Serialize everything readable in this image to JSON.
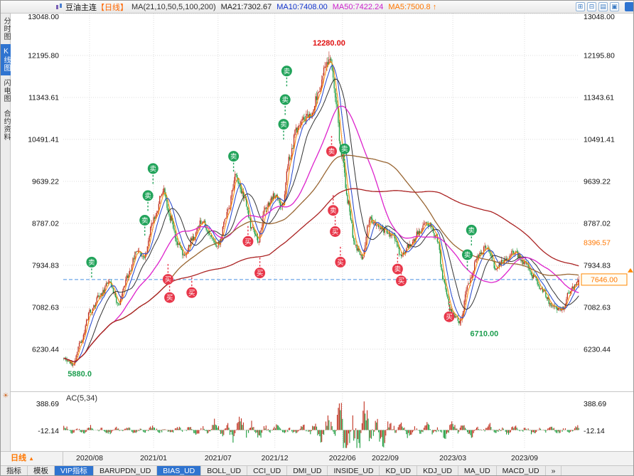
{
  "header": {
    "symbol": "豆油主连",
    "period_tag": "【日线】",
    "ma_settings": "MA(21,10,50,5,100,200)",
    "ma_values": [
      {
        "label": "MA21:7302.67",
        "color": "#222222"
      },
      {
        "label": "MA10:7408.00",
        "color": "#1133cc"
      },
      {
        "label": "MA50:7422.24",
        "color": "#cc22cc"
      },
      {
        "label": "MA5:7500.8 ↑",
        "color": "#ff7700"
      }
    ],
    "window_icons": [
      {
        "name": "tile-windows-icon",
        "glyph": "⊞"
      },
      {
        "name": "split-horizontal-icon",
        "glyph": "⊟"
      },
      {
        "name": "list-view-icon",
        "glyph": "▤"
      },
      {
        "name": "maximize-window-icon",
        "glyph": "▣"
      }
    ]
  },
  "sidebar": {
    "tabs": [
      {
        "label": "分时图",
        "active": false
      },
      {
        "label": "K线图",
        "active": true
      },
      {
        "label": "闪电图",
        "active": false
      },
      {
        "label": "合约资料",
        "active": false
      }
    ],
    "bottom_icon": "☀"
  },
  "footer": {
    "period": "日线",
    "period_arrow": "▲",
    "tabs": [
      {
        "label": "指标",
        "active": false
      },
      {
        "label": "模板",
        "active": false
      },
      {
        "label": "VIP指标",
        "active": true
      },
      {
        "label": "BARUPDN_UD",
        "active": false
      },
      {
        "label": "BIAS_UD",
        "active": true
      },
      {
        "label": "BOLL_UD",
        "active": false
      },
      {
        "label": "CCI_UD",
        "active": false
      },
      {
        "label": "DMI_UD",
        "active": false
      },
      {
        "label": "INSIDE_UD",
        "active": false
      },
      {
        "label": "KD_UD",
        "active": false
      },
      {
        "label": "KDJ_UD",
        "active": false
      },
      {
        "label": "MA_UD",
        "active": false
      },
      {
        "label": "MACD_UD",
        "active": false
      },
      {
        "label": "»",
        "active": false
      }
    ]
  },
  "chart_data": {
    "type": "candlestick",
    "title": "豆油主连 日线",
    "y_ticks": [
      13048.0,
      12195.8,
      11343.61,
      10491.41,
      9639.22,
      8787.02,
      7934.83,
      7082.63,
      6230.44
    ],
    "y_range": [
      5390,
      13048
    ],
    "x_ticks": [
      {
        "label": "2020/08",
        "t": 0.051
      },
      {
        "label": "2021/01",
        "t": 0.175
      },
      {
        "label": "2021/07",
        "t": 0.3
      },
      {
        "label": "2021/12",
        "t": 0.41
      },
      {
        "label": "2022/06",
        "t": 0.541
      },
      {
        "label": "2022/09",
        "t": 0.624
      },
      {
        "label": "2023/03",
        "t": 0.755
      },
      {
        "label": "2023/09",
        "t": 0.894
      }
    ],
    "candle_count": 500,
    "price_path": [
      [
        0.0,
        6050
      ],
      [
        0.017,
        5940
      ],
      [
        0.033,
        6350
      ],
      [
        0.051,
        7000
      ],
      [
        0.072,
        7350
      ],
      [
        0.088,
        7600
      ],
      [
        0.106,
        7150
      ],
      [
        0.124,
        7700
      ],
      [
        0.141,
        8200
      ],
      [
        0.155,
        8100
      ],
      [
        0.175,
        8900
      ],
      [
        0.193,
        9450
      ],
      [
        0.207,
        8900
      ],
      [
        0.221,
        8350
      ],
      [
        0.235,
        8150
      ],
      [
        0.251,
        8500
      ],
      [
        0.268,
        8850
      ],
      [
        0.286,
        8500
      ],
      [
        0.3,
        8350
      ],
      [
        0.318,
        9000
      ],
      [
        0.334,
        9750
      ],
      [
        0.351,
        9300
      ],
      [
        0.365,
        8700
      ],
      [
        0.378,
        8450
      ],
      [
        0.392,
        9100
      ],
      [
        0.41,
        9350
      ],
      [
        0.424,
        9100
      ],
      [
        0.438,
        10100
      ],
      [
        0.452,
        10700
      ],
      [
        0.465,
        10900
      ],
      [
        0.479,
        11000
      ],
      [
        0.493,
        11400
      ],
      [
        0.507,
        11900
      ],
      [
        0.517,
        12150
      ],
      [
        0.528,
        11300
      ],
      [
        0.539,
        10200
      ],
      [
        0.552,
        9200
      ],
      [
        0.566,
        8300
      ],
      [
        0.58,
        8100
      ],
      [
        0.594,
        8900
      ],
      [
        0.608,
        8700
      ],
      [
        0.624,
        8650
      ],
      [
        0.641,
        8500
      ],
      [
        0.655,
        8100
      ],
      [
        0.673,
        8350
      ],
      [
        0.69,
        8600
      ],
      [
        0.707,
        8800
      ],
      [
        0.724,
        8500
      ],
      [
        0.738,
        7600
      ],
      [
        0.751,
        7000
      ],
      [
        0.769,
        6800
      ],
      [
        0.787,
        7600
      ],
      [
        0.804,
        8100
      ],
      [
        0.82,
        8300
      ],
      [
        0.838,
        7900
      ],
      [
        0.856,
        8050
      ],
      [
        0.876,
        8200
      ],
      [
        0.894,
        8000
      ],
      [
        0.912,
        7700
      ],
      [
        0.931,
        7400
      ],
      [
        0.949,
        7100
      ],
      [
        0.967,
        7050
      ],
      [
        0.983,
        7400
      ],
      [
        1.0,
        7646
      ]
    ],
    "colors": {
      "up": "#c0301e",
      "down": "#1b9b3c",
      "grid": "#dcdcdc",
      "last_price_line": "#4a90e2",
      "signal_sell": "#21a35a",
      "signal_buy": "#e8374a"
    },
    "moving_averages": [
      {
        "period": 5,
        "color": "#ff8800"
      },
      {
        "period": 10,
        "color": "#2244cc"
      },
      {
        "period": 21,
        "color": "#333333"
      },
      {
        "period": 50,
        "color": "#dd22cc"
      },
      {
        "period": 100,
        "color": "#996633"
      },
      {
        "period": 200,
        "color": "#aa2222"
      }
    ],
    "annotations": {
      "peak": {
        "t": 0.515,
        "price": 12280,
        "label": "12280.00",
        "color": "#e01111"
      },
      "trough": {
        "t": 0.772,
        "price": 6710,
        "label": "6710.00",
        "color": "#1d9e4f"
      },
      "start_low": {
        "t": 0.017,
        "price": 5880,
        "label": "5880.0",
        "color": "#1d9e4f"
      }
    },
    "last_price": {
      "value": 7646.0,
      "label": "7646.00",
      "color": "#ff7700"
    },
    "recent_high": {
      "value": 8396.57,
      "label": "8396.57",
      "color": "#ff7700"
    },
    "signal_labels": {
      "sell": "卖",
      "buy": "买"
    },
    "signals": [
      {
        "t": 0.055,
        "price": 8000,
        "type": "sell"
      },
      {
        "t": 0.158,
        "price": 8850,
        "type": "sell"
      },
      {
        "t": 0.164,
        "price": 9350,
        "type": "sell"
      },
      {
        "t": 0.174,
        "price": 9900,
        "type": "sell"
      },
      {
        "t": 0.33,
        "price": 10150,
        "type": "sell"
      },
      {
        "t": 0.427,
        "price": 10800,
        "type": "sell"
      },
      {
        "t": 0.43,
        "price": 11300,
        "type": "sell"
      },
      {
        "t": 0.433,
        "price": 11880,
        "type": "sell"
      },
      {
        "t": 0.545,
        "price": 10300,
        "type": "sell"
      },
      {
        "t": 0.783,
        "price": 8150,
        "type": "sell"
      },
      {
        "t": 0.791,
        "price": 8650,
        "type": "sell"
      },
      {
        "t": 0.52,
        "price": 10250,
        "type": "sell-red"
      },
      {
        "t": 0.523,
        "price": 9050,
        "type": "sell-red"
      },
      {
        "t": 0.648,
        "price": 7860,
        "type": "sell-red"
      },
      {
        "t": 0.203,
        "price": 7650,
        "type": "buy"
      },
      {
        "t": 0.206,
        "price": 7280,
        "type": "buy"
      },
      {
        "t": 0.249,
        "price": 7380,
        "type": "buy"
      },
      {
        "t": 0.358,
        "price": 8420,
        "type": "buy"
      },
      {
        "t": 0.381,
        "price": 7780,
        "type": "buy"
      },
      {
        "t": 0.527,
        "price": 8620,
        "type": "buy"
      },
      {
        "t": 0.537,
        "price": 8000,
        "type": "buy"
      },
      {
        "t": 0.655,
        "price": 7620,
        "type": "buy"
      },
      {
        "t": 0.748,
        "price": 6890,
        "type": "buy"
      }
    ],
    "sub_indicator": {
      "name": "AC(5,34)",
      "y_ticks": [
        388.69,
        -12.14
      ],
      "y_range": [
        -280,
        520
      ]
    }
  }
}
